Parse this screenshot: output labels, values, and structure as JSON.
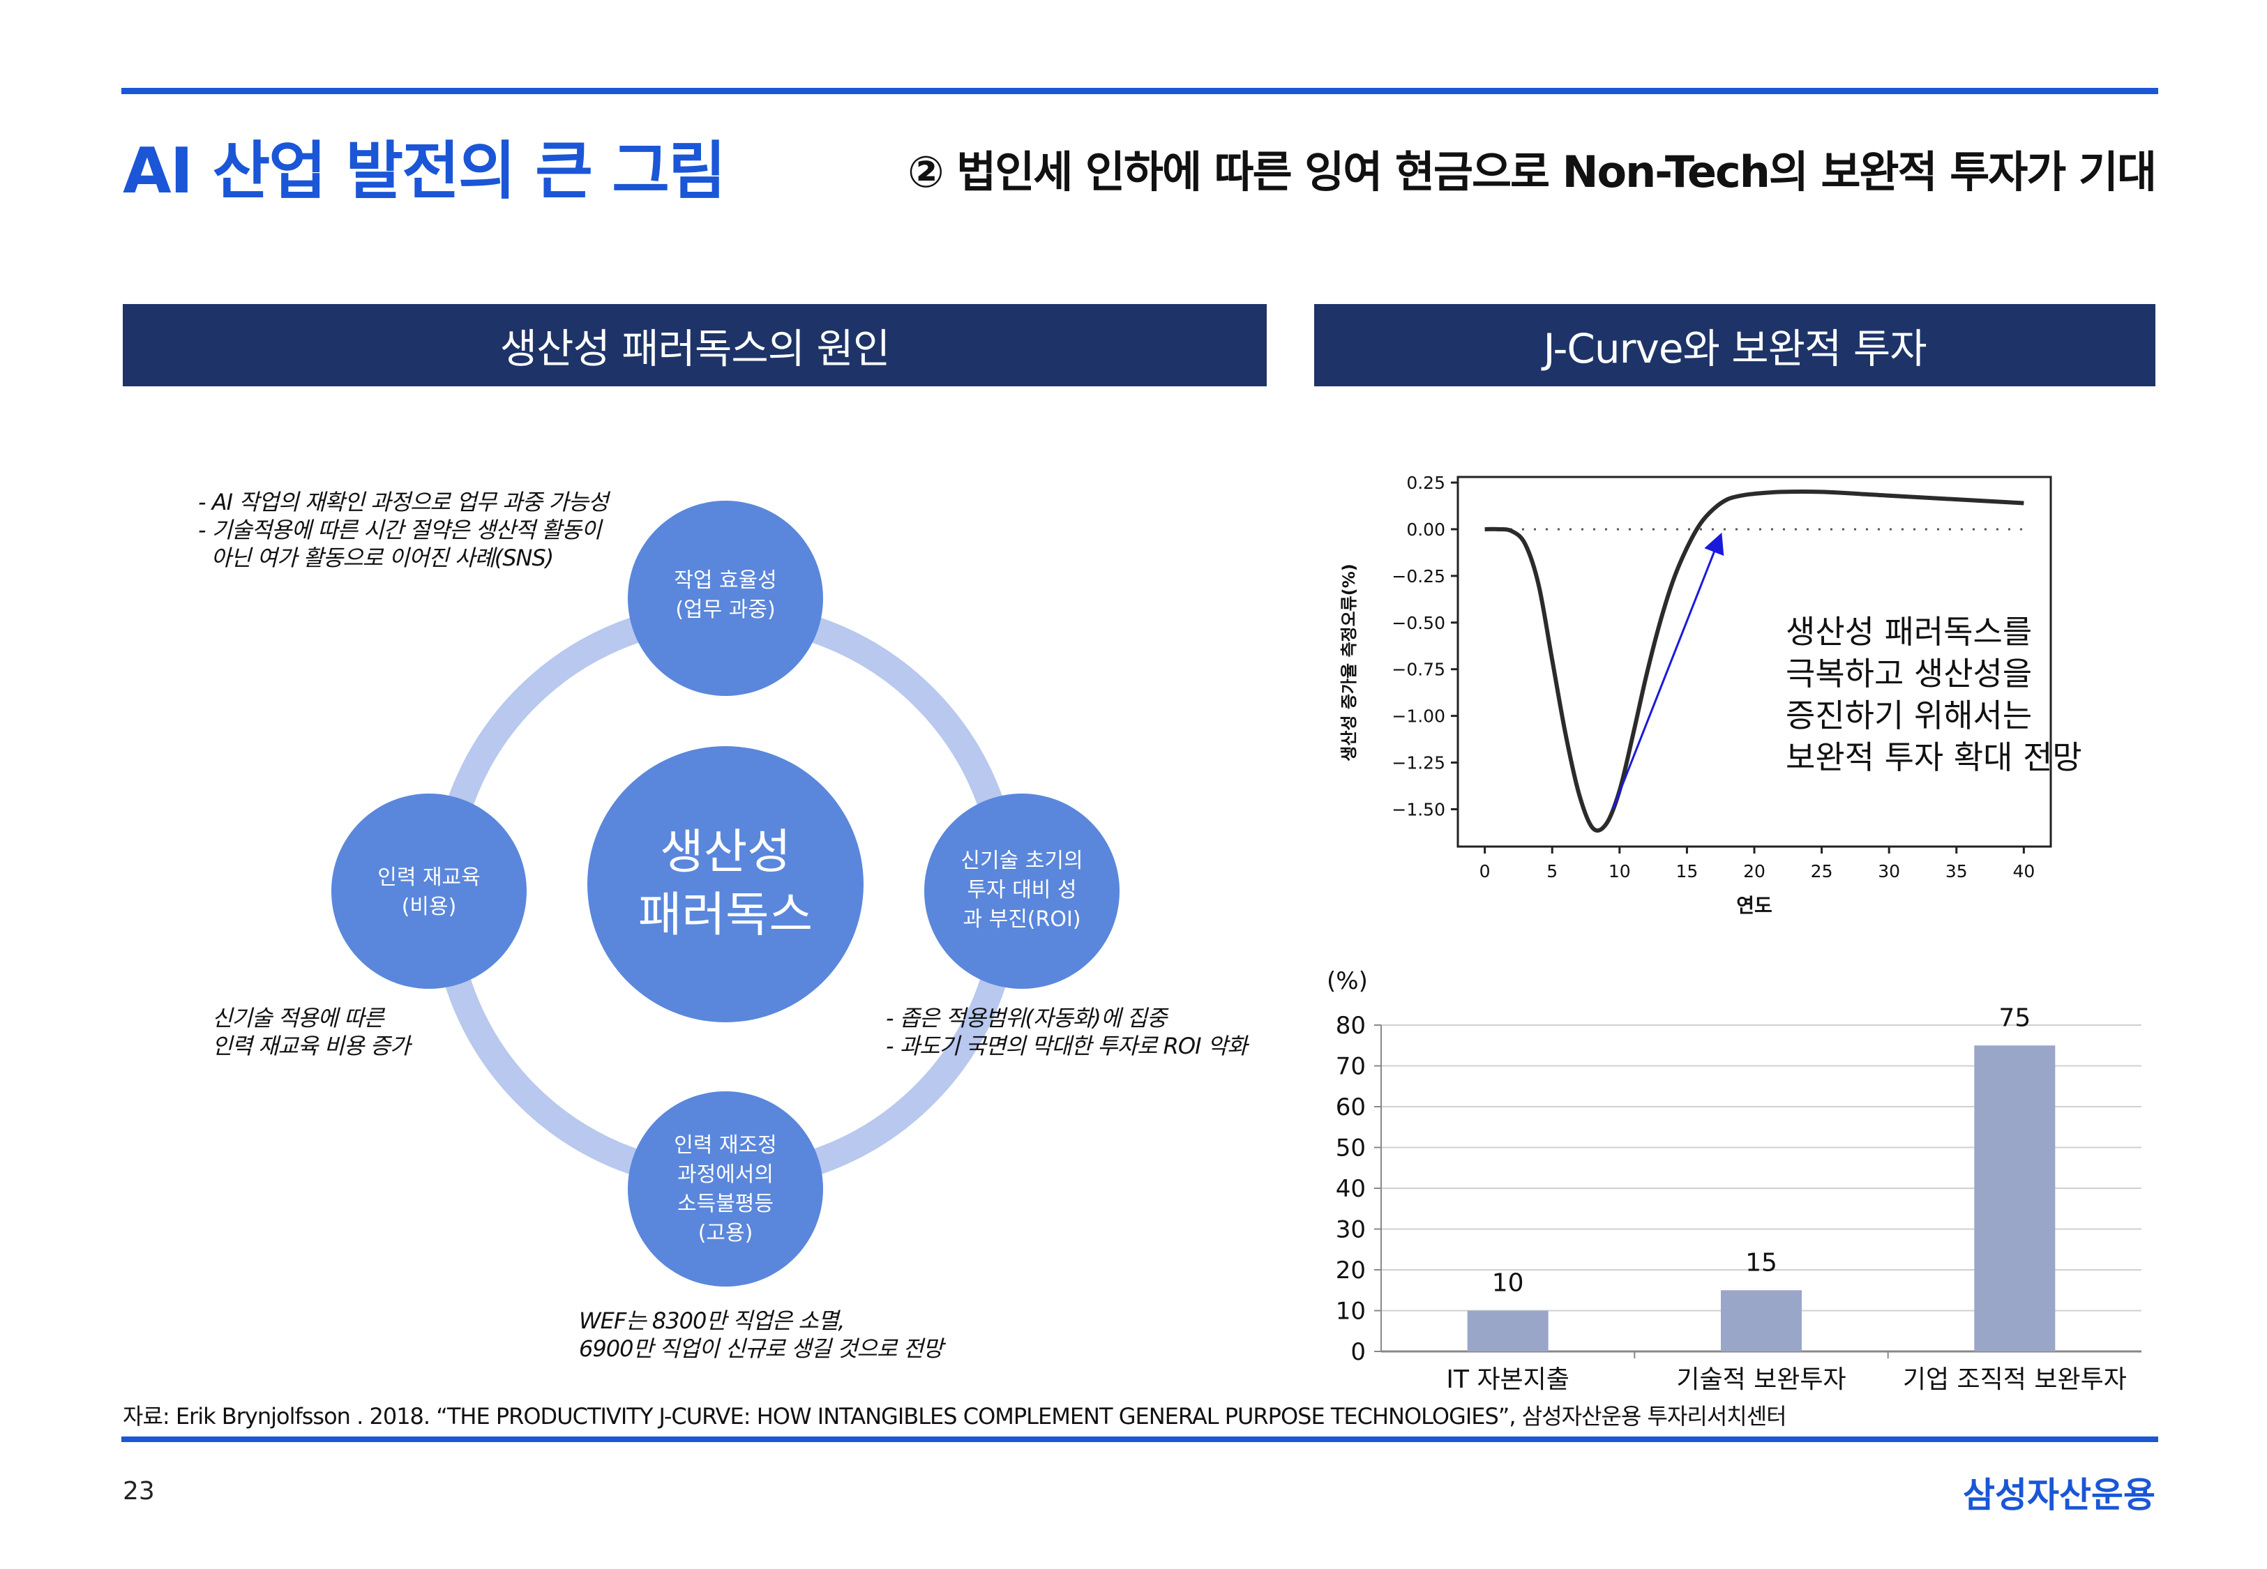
{
  "header": {
    "title": "AI 산업 발전의 큰 그림",
    "subtitle": "② 법인세 인하에 따른 잉여 현금으로 Non-Tech의 보완적 투자가 기대"
  },
  "sections": {
    "left": "생산성 패러독스의 원인",
    "right": "J-Curve와 보완적 투자"
  },
  "diagram": {
    "center": [
      "생산성",
      "패러독스"
    ],
    "nodes": {
      "top": [
        "작업 효율성",
        "(업무 과중)"
      ],
      "right": [
        "신기술 초기의",
        "투자 대비 성",
        "과 부진(ROI)"
      ],
      "bottom": [
        "인력 재조정",
        "과정에서의",
        "소득불평등",
        "(고용)"
      ],
      "left": [
        "인력 재교육",
        "(비용)"
      ]
    },
    "notes": {
      "top_left": [
        "- AI 작업의 재확인 과정으로 업무 과중 가능성",
        "- 기술적용에 따른  시간 절약은 생산적 활동이",
        "  아닌 여가 활동으로 이어진 사례(SNS)"
      ],
      "left": [
        "신기술 적용에 따른",
        "인력 재교육 비용 증가"
      ],
      "right": [
        "- 좁은 적용범위(자동화)에 집중",
        "- 과도기 국면의 막대한 투자로 ROI 악화"
      ],
      "bottom": [
        "WEF는 8300만 직업은 소멸,",
        "6900만 직업이 신규로 생길 것으로 전망"
      ]
    },
    "colors": {
      "node": "#5a87dc",
      "ring": "#b8c8ee"
    }
  },
  "chart_data": [
    {
      "type": "line",
      "title": "",
      "xlabel": "연도",
      "ylabel": "생산성 증가율 측정오류(%)",
      "xlim": [
        -2,
        42
      ],
      "ylim": [
        -1.7,
        0.28
      ],
      "xticks": [
        0,
        5,
        10,
        15,
        20,
        25,
        30,
        35,
        40
      ],
      "yticks": [
        0.25,
        0.0,
        -0.25,
        -0.5,
        -0.75,
        -1.0,
        -1.25,
        -1.5
      ],
      "ytick_labels": [
        "0.25",
        "0.00",
        "−0.25",
        "−0.50",
        "−0.75",
        "−1.00",
        "−1.25",
        "−1.50"
      ],
      "reference_line": {
        "y": 0,
        "style": "dotted"
      },
      "x": [
        0,
        1,
        2,
        3,
        4,
        5,
        6,
        7,
        8,
        9,
        10,
        11,
        12,
        13,
        14,
        15,
        16,
        17,
        18,
        19,
        20,
        22,
        25,
        30,
        35,
        40
      ],
      "values": [
        0.0,
        0.0,
        -0.01,
        -0.08,
        -0.3,
        -0.7,
        -1.1,
        -1.42,
        -1.6,
        -1.58,
        -1.4,
        -1.1,
        -0.78,
        -0.5,
        -0.27,
        -0.1,
        0.03,
        0.11,
        0.16,
        0.18,
        0.19,
        0.2,
        0.2,
        0.18,
        0.16,
        0.14
      ],
      "annotation": [
        "생산성 패러독스를",
        "극복하고 생산성을",
        "증진하기 위해서는",
        "보완적 투자 확대 전망"
      ],
      "colors": {
        "line": "#2b2b2b",
        "arrow": "#1a1adb"
      }
    },
    {
      "type": "bar",
      "title": "",
      "ylabel": "(%)",
      "ylim": [
        0,
        80
      ],
      "yticks": [
        0,
        10,
        20,
        30,
        40,
        50,
        60,
        70,
        80
      ],
      "categories": [
        "IT 자본지출",
        "기술적 보완투자",
        "기업 조직적 보완투자"
      ],
      "values": [
        10,
        15,
        75
      ],
      "grid": true,
      "colors": {
        "bar": "#9aa6c8"
      }
    }
  ],
  "footer": {
    "source": "자료: Erik Brynjolfsson . 2018. “THE PRODUCTIVITY J-CURVE: HOW INTANGIBLES COMPLEMENT GENERAL PURPOSE TECHNOLOGIES”, 삼성자산운용 투자리서치센터",
    "page_number": "23",
    "brand": "삼성자산운용"
  }
}
